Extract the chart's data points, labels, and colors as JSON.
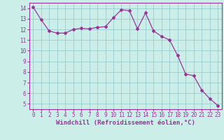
{
  "x": [
    0,
    1,
    2,
    3,
    4,
    5,
    6,
    7,
    8,
    9,
    10,
    11,
    12,
    13,
    14,
    15,
    16,
    17,
    18,
    19,
    20,
    21,
    22,
    23
  ],
  "y": [
    14.1,
    12.9,
    11.85,
    11.65,
    11.65,
    12.0,
    12.1,
    12.05,
    12.2,
    12.25,
    13.1,
    13.85,
    13.75,
    12.05,
    13.55,
    11.85,
    11.35,
    11.0,
    9.55,
    7.8,
    7.65,
    6.3,
    5.5,
    4.85
  ],
  "line_color": "#993399",
  "marker": "D",
  "marker_size": 2.0,
  "bg_color": "#cceee8",
  "grid_color": "#99cccc",
  "xlabel": "Windchill (Refroidissement éolien,°C)",
  "ylim": [
    4.5,
    14.5
  ],
  "xlim": [
    -0.5,
    23.5
  ],
  "yticks": [
    5,
    6,
    7,
    8,
    9,
    10,
    11,
    12,
    13,
    14
  ],
  "xtick_labels": [
    "0",
    "1",
    "2",
    "3",
    "4",
    "5",
    "6",
    "7",
    "8",
    "9",
    "10",
    "11",
    "12",
    "13",
    "14",
    "15",
    "16",
    "17",
    "18",
    "19",
    "20",
    "21",
    "22",
    "23"
  ],
  "tick_color": "#993399",
  "label_color": "#993399",
  "spine_color": "#993399",
  "tick_fontsize": 5.5,
  "xlabel_fontsize": 6.5
}
